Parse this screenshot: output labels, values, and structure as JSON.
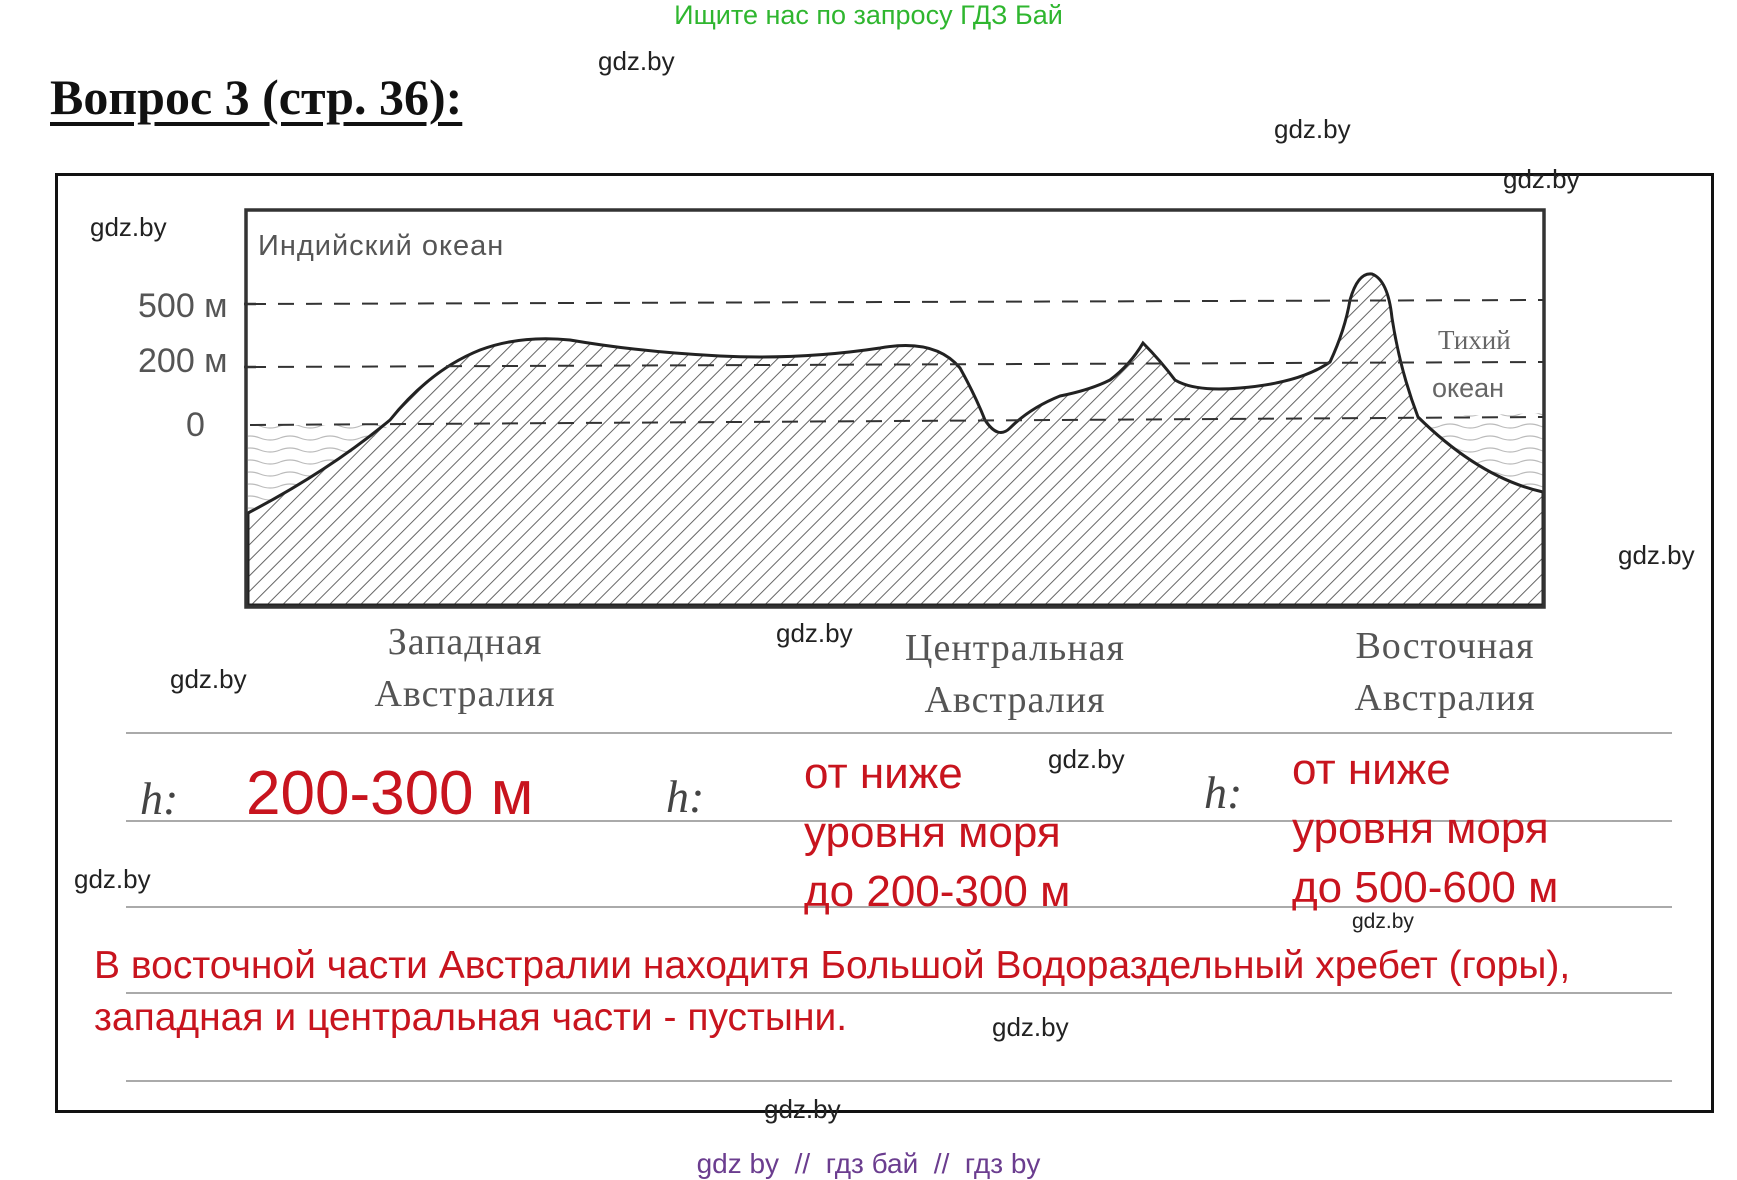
{
  "header": {
    "search_hint": "Ищите нас по запросу ГДЗ Бай",
    "title": "Вопрос 3 (стр. 36):"
  },
  "watermark": "gdz.by",
  "profile": {
    "ocean_left": "Индийский океан",
    "ocean_right_line1": "Тихий",
    "ocean_right_line2": "океан",
    "levels": [
      "500 м",
      "200 м",
      "0"
    ]
  },
  "regions": [
    {
      "line1": "Западная",
      "line2": "Австралия"
    },
    {
      "line1": "Центральная",
      "line2": "Австралия"
    },
    {
      "line1": "Восточная",
      "line2": "Австралия"
    }
  ],
  "height_label": "h:",
  "answers": {
    "west": "200-300 м",
    "central": [
      "от ниже",
      "уровня моря",
      "до 200-300 м"
    ],
    "east": [
      "от ниже",
      "уровня моря",
      "до 500-600 м"
    ],
    "conclusion": [
      "В восточной части Австралии находитя Большой Водораздельный хребет (горы),",
      "западная и центральная части - пустыни."
    ]
  },
  "footer": "gdz by  //  гдз бай  //  гдз by"
}
